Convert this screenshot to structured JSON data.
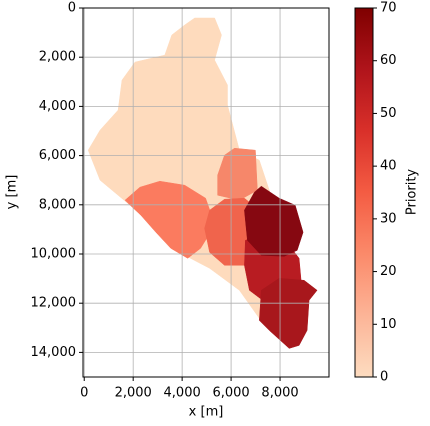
{
  "chart_data": {
    "type": "region-map",
    "xlabel": "x [m]",
    "ylabel": "y [m]",
    "colorbar_label": "Priority",
    "xlim": [
      -50,
      10000
    ],
    "ylim": [
      15000,
      0
    ],
    "xticks": [
      0,
      {
        "value": 2000,
        "label": "2,000"
      },
      {
        "value": 4000,
        "label": "4,000"
      },
      {
        "value": 6000,
        "label": "6,000"
      },
      {
        "value": 8000,
        "label": "8,000"
      }
    ],
    "yticks": [
      0,
      {
        "value": 2000,
        "label": "2,000"
      },
      {
        "value": 4000,
        "label": "4,000"
      },
      {
        "value": 6000,
        "label": "6,000"
      },
      {
        "value": 8000,
        "label": "8,000"
      },
      {
        "value": 10000,
        "label": "10,000"
      },
      {
        "value": 12000,
        "label": "12,000"
      },
      {
        "value": 14000,
        "label": "14,000"
      }
    ],
    "grid": true,
    "clim": [
      0,
      70
    ],
    "cticks": [
      0,
      10,
      20,
      30,
      40,
      50,
      60,
      70
    ],
    "colormap": [
      "#fddcc0",
      "#fcb497",
      "#fb8a6a",
      "#f45c43",
      "#d9302a",
      "#b0141b",
      "#7f0000"
    ],
    "regions": [
      {
        "priority": 3,
        "color": "#fedbbd",
        "x": [
          4512,
          5325,
          5610,
          5325,
          5854,
          5854,
          6341,
          7154,
          8780,
          7967,
          7358,
          6341,
          5122,
          4106,
          1870,
          650,
          163,
          650,
          1382,
          1545,
          2073,
          3293,
          3577,
          4106
        ],
        "y": [
          407,
          407,
          1099,
          2116,
          3134,
          3948,
          5780,
          6186,
          11070,
          13105,
          12902,
          11477,
          10582,
          10053,
          8018,
          7000,
          5780,
          4965,
          4151,
          2930,
          2198,
          1913,
          1099,
          692
        ]
      },
      {
        "priority": 33,
        "color": "#fb7b5f",
        "x": [
          1667,
          2276,
          3089,
          4106,
          4959,
          5203,
          5081,
          4756,
          4228,
          3537,
          2927,
          2317
        ],
        "y": [
          7814,
          7285,
          7041,
          7204,
          7733,
          8425,
          9239,
          9768,
          10175,
          9768,
          9117,
          8425
        ]
      },
      {
        "priority": 30,
        "color": "#f6876a",
        "x": [
          5447,
          5732,
          6138,
          6992,
          7073,
          6341,
          5447
        ],
        "y": [
          6797,
          5983,
          5698,
          5780,
          7407,
          7814,
          7611
        ]
      },
      {
        "priority": 38,
        "color": "#f0644c",
        "x": [
          4919,
          5122,
          5732,
          6545,
          7154,
          7480,
          7236,
          6545,
          5732,
          5122
        ],
        "y": [
          8954,
          8221,
          7774,
          7733,
          8221,
          9035,
          9931,
          10460,
          10460,
          9931
        ]
      },
      {
        "priority": 55,
        "color": "#b81c22",
        "x": [
          6585,
          7236,
          8374,
          8780,
          8862,
          8374,
          7561,
          6748,
          6545
        ],
        "y": [
          9442,
          9239,
          9646,
          10175,
          11070,
          11884,
          12087,
          11477,
          10460
        ]
      },
      {
        "priority": 58,
        "color": "#a8171c",
        "x": [
          7236,
          7967,
          8984,
          9512,
          9187,
          9105,
          8780,
          8374,
          7561,
          7154
        ],
        "y": [
          11477,
          10989,
          11070,
          11477,
          11884,
          13105,
          13715,
          13837,
          13105,
          12698
        ]
      },
      {
        "priority": 68,
        "color": "#860811",
        "x": [
          6545,
          6951,
          7236,
          7967,
          8618,
          8943,
          8699,
          8171,
          7236,
          6667
        ],
        "y": [
          8221,
          7489,
          7245,
          7733,
          8018,
          9117,
          9849,
          10093,
          10053,
          9442
        ]
      }
    ]
  }
}
